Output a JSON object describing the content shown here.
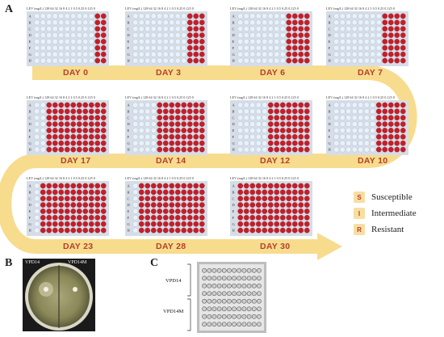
{
  "panels": {
    "a": "A",
    "b": "B",
    "c": "C"
  },
  "plate": {
    "header_unit": "LEV (mg/L)",
    "columns": [
      "128",
      "64",
      "32",
      "16",
      "8",
      "4",
      "2",
      "1",
      "0.5",
      "0.25",
      "0.125",
      "0"
    ],
    "rows": [
      "A",
      "B",
      "C",
      "D",
      "E",
      "F",
      "G",
      "H"
    ]
  },
  "plates": [
    {
      "day": "DAY 0",
      "resistant_columns": 2
    },
    {
      "day": "DAY 3",
      "resistant_columns": 3
    },
    {
      "day": "DAY 6",
      "resistant_columns": 4
    },
    {
      "day": "DAY 7",
      "resistant_columns": 4
    },
    {
      "day": "DAY 17",
      "resistant_columns": 10
    },
    {
      "day": "DAY 14",
      "resistant_columns": 8
    },
    {
      "day": "DAY 12",
      "resistant_columns": 7
    },
    {
      "day": "DAY 10",
      "resistant_columns": 5
    },
    {
      "day": "DAY 23",
      "resistant_columns": 11
    },
    {
      "day": "DAY 28",
      "resistant_columns": 11
    },
    {
      "day": "DAY 30",
      "resistant_columns": 12
    }
  ],
  "legend": [
    {
      "key": "S",
      "label": "Susceptible"
    },
    {
      "key": "I",
      "label": "Intermediate"
    },
    {
      "key": "R",
      "label": "Resistant"
    }
  ],
  "panel_b": {
    "left_strain": "VPD14",
    "right_strain": "VPD14M"
  },
  "panel_c": {
    "upper_strain": "VPD14",
    "lower_strain": "VPD14M"
  },
  "colors": {
    "arrow": "#f7dc8e",
    "well_resistant": "#c41e2a",
    "well_susceptible": "#e9f2fb",
    "plate_background": "#d6dde6",
    "day_label": "#b5402a"
  }
}
